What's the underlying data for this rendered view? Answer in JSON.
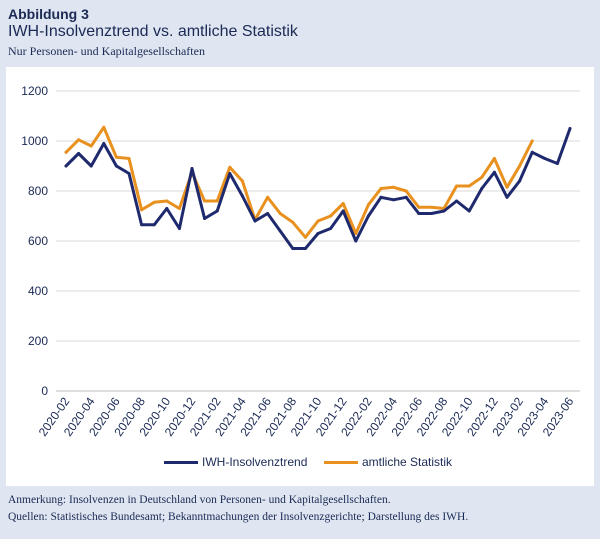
{
  "figure": {
    "label": "Abbildung 3",
    "title": "IWH-Insolvenztrend vs. amtliche Statistik",
    "subtitle": "Nur Personen- und Kapitalgesellschaften"
  },
  "footer": {
    "note": "Anmerkung: Insolvenzen in Deutschland von Personen- und Kapitalgesellschaften.",
    "sources": "Quellen: Statistisches Bundesamt; Bekanntmachungen der Insolvenzgerichte; Darstellung des IWH."
  },
  "colors": {
    "iwh": "#1f2a6e",
    "amtlich": "#e8911e",
    "grid": "#d9d9d9",
    "text": "#1b2a55"
  },
  "chart_data": {
    "type": "line",
    "title": "",
    "xlabel": "",
    "ylabel": "",
    "ylim": [
      0,
      1200
    ],
    "yticks": [
      0,
      200,
      400,
      600,
      800,
      1000,
      1200
    ],
    "grid": true,
    "legend_position": "bottom",
    "x": [
      "2020-02",
      "2020-03",
      "2020-04",
      "2020-05",
      "2020-06",
      "2020-07",
      "2020-08",
      "2020-09",
      "2020-10",
      "2020-11",
      "2020-12",
      "2021-01",
      "2021-02",
      "2021-03",
      "2021-04",
      "2021-05",
      "2021-06",
      "2021-07",
      "2021-08",
      "2021-09",
      "2021-10",
      "2021-11",
      "2021-12",
      "2022-01",
      "2022-02",
      "2022-03",
      "2022-04",
      "2022-05",
      "2022-06",
      "2022-07",
      "2022-08",
      "2022-09",
      "2022-10",
      "2022-11",
      "2022-12",
      "2023-01",
      "2023-02",
      "2023-03",
      "2023-04",
      "2023-05",
      "2023-06"
    ],
    "xtick_labels": [
      "2020-02",
      "2020-04",
      "2020-06",
      "2020-08",
      "2020-10",
      "2020-12",
      "2021-02",
      "2021-04",
      "2021-06",
      "2021-08",
      "2021-10",
      "2021-12",
      "2022-02",
      "2022-04",
      "2022-06",
      "2022-08",
      "2022-10",
      "2022-12",
      "2023-02",
      "2023-04",
      "2023-06"
    ],
    "series": [
      {
        "name": "IWH-Insolvenztrend",
        "values": [
          900,
          950,
          900,
          990,
          900,
          870,
          665,
          665,
          730,
          650,
          890,
          690,
          720,
          870,
          780,
          680,
          710,
          640,
          570,
          570,
          630,
          650,
          720,
          600,
          700,
          775,
          765,
          775,
          710,
          710,
          720,
          760,
          720,
          810,
          875,
          775,
          840,
          955,
          930,
          910,
          1050
        ]
      },
      {
        "name": "amtliche Statistik",
        "values": [
          955,
          1005,
          980,
          1055,
          935,
          930,
          725,
          755,
          760,
          730,
          875,
          760,
          760,
          895,
          840,
          685,
          775,
          710,
          675,
          615,
          680,
          700,
          750,
          630,
          745,
          810,
          815,
          800,
          735,
          735,
          730,
          820,
          820,
          855,
          930,
          815,
          900,
          1000,
          null,
          null,
          null
        ]
      }
    ]
  }
}
